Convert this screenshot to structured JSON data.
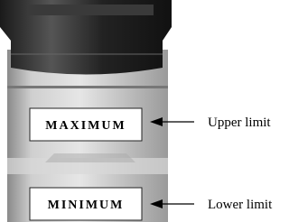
{
  "labels": {
    "maximum": "MAXIMUM",
    "minimum": "MINIMUM",
    "upper": "Upper limit",
    "lower": "Lower limit"
  }
}
